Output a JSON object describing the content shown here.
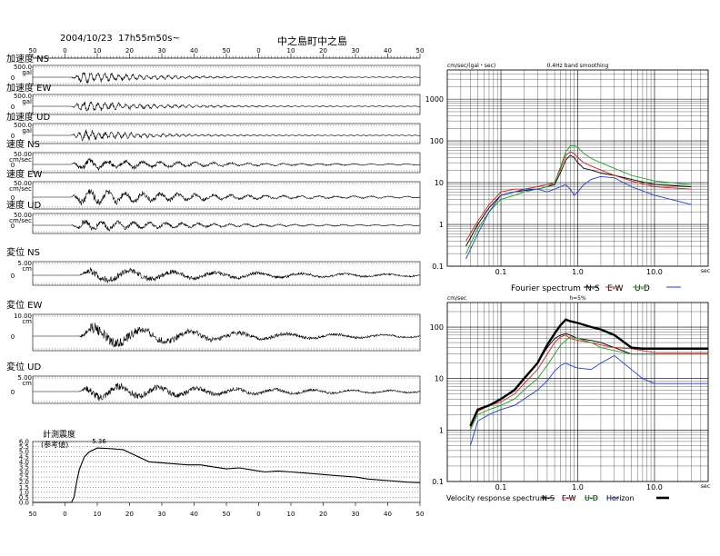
{
  "header": {
    "datetime": "2004/10/23  17h55m50s~",
    "station": "中之島町中之島"
  },
  "chart_data": [
    {
      "type": "line",
      "id": "waveforms",
      "x": [
        50,
        0,
        10,
        20,
        30,
        40,
        50,
        0,
        10,
        20,
        30,
        40,
        50
      ],
      "xticks": [
        "50",
        "0",
        "10",
        "20",
        "30",
        "40",
        "50",
        "0",
        "10",
        "20",
        "30",
        "40",
        "50"
      ],
      "panels": [
        {
          "label": "加速度 NS",
          "scale_top": "500.0",
          "scale_unit": "gal",
          "zero": "0",
          "amp": 0.9,
          "onset": 0.1,
          "decay": 0.18,
          "freq": 55,
          "peak_label": ""
        },
        {
          "label": "加速度 EW",
          "scale_top": "500.0",
          "scale_unit": "gal",
          "zero": "0",
          "amp": 0.9,
          "onset": 0.1,
          "decay": 0.18,
          "freq": 55,
          "peak_label": ""
        },
        {
          "label": "加速度 UD",
          "scale_top": "500.0",
          "scale_unit": "gal",
          "zero": "0",
          "amp": 0.9,
          "onset": 0.1,
          "decay": 0.16,
          "freq": 60,
          "peak_label": ""
        },
        {
          "label": "速度 NS",
          "scale_top": "50.00",
          "scale_unit": "cm/sec",
          "zero": "0",
          "amp": 0.9,
          "onset": 0.1,
          "decay": 0.3,
          "freq": 22,
          "peak_label": ""
        },
        {
          "label": "速度 EW",
          "scale_top": "50.00",
          "scale_unit": "cm/sec",
          "zero": "0",
          "amp": 0.9,
          "onset": 0.1,
          "decay": 0.3,
          "freq": 22,
          "peak_label": ""
        },
        {
          "label": "速度 UD",
          "scale_top": "50.00",
          "scale_unit": "cm/sec",
          "zero": "0",
          "amp": 0.9,
          "onset": 0.1,
          "decay": 0.28,
          "freq": 24,
          "peak_label": ""
        },
        {
          "label": "変位 NS",
          "scale_top": "5.00",
          "scale_unit": "cm",
          "zero": "0",
          "amp": 0.9,
          "onset": 0.12,
          "decay": 0.45,
          "freq": 9,
          "peak_label": ""
        },
        {
          "label": "変位 EW",
          "scale_top": "10.00",
          "scale_unit": "cm",
          "zero": "0",
          "amp": 0.9,
          "onset": 0.12,
          "decay": 0.35,
          "freq": 8,
          "peak_label": ""
        },
        {
          "label": "変位 UD",
          "scale_top": "5.00",
          "scale_unit": "cm",
          "zero": "0",
          "amp": 0.9,
          "onset": 0.12,
          "decay": 0.4,
          "freq": 10,
          "peak_label": ""
        }
      ]
    },
    {
      "type": "line",
      "id": "seismic-intensity",
      "title": "計測震度",
      "subtitle": "(参考値)",
      "peak_label": "5.36",
      "ylim": [
        0,
        6
      ],
      "yticks": [
        "0.0",
        "0.5",
        "1.0",
        "1.5",
        "2.0",
        "2.5",
        "3.0",
        "3.5",
        "4.0",
        "4.5",
        "5.0",
        "5.5",
        "6.0"
      ],
      "xticks": [
        "50",
        "0",
        "10",
        "20",
        "30",
        "40",
        "50",
        "0",
        "10",
        "20",
        "30",
        "40",
        "50"
      ],
      "x": [
        50,
        55,
        60,
        65,
        66,
        67,
        68,
        70,
        72,
        75,
        80,
        85,
        90,
        95,
        100,
        105,
        110,
        115,
        120,
        125,
        130,
        135,
        140,
        145,
        150,
        155,
        160,
        165,
        170,
        175,
        180,
        185,
        190,
        195,
        200
      ],
      "values": [
        0.0,
        0.0,
        0.0,
        0.0,
        0.5,
        2.0,
        3.2,
        4.5,
        5.0,
        5.36,
        5.3,
        5.2,
        4.6,
        4.0,
        3.9,
        3.8,
        3.7,
        3.7,
        3.5,
        3.3,
        3.4,
        3.2,
        3.0,
        3.1,
        3.0,
        2.9,
        2.8,
        2.7,
        2.6,
        2.5,
        2.3,
        2.2,
        2.1,
        2.0,
        1.95
      ]
    },
    {
      "type": "line",
      "id": "fourier-spectrum",
      "ylabel": "cm/sec/(gal・sec)",
      "note": "0.4Hz band smoothing",
      "xscale": "log",
      "yscale": "log",
      "xlim": [
        0.02,
        50
      ],
      "ylim": [
        0.1,
        5000
      ],
      "xtick_labels": [
        {
          "v": 0.1,
          "t": "0.1"
        },
        {
          "v": 1,
          "t": "1.0"
        },
        {
          "v": 10,
          "t": "10.0"
        }
      ],
      "xunit": "sec",
      "ytick_labels": [
        {
          "v": 0.1,
          "t": "0.1"
        },
        {
          "v": 1,
          "t": "1"
        },
        {
          "v": 10,
          "t": "10"
        },
        {
          "v": 100,
          "t": "100"
        },
        {
          "v": 1000,
          "t": "1000"
        }
      ],
      "legend": {
        "title": "Fourier spectrum",
        "items": [
          "N-S",
          "E-W",
          "U-D",
          ""
        ]
      },
      "series": [
        {
          "name": "N-S",
          "color": "#000000",
          "x": [
            0.035,
            0.05,
            0.07,
            0.1,
            0.15,
            0.2,
            0.3,
            0.4,
            0.5,
            0.6,
            0.7,
            0.8,
            0.9,
            1.0,
            1.2,
            1.5,
            2,
            3,
            5,
            10,
            30
          ],
          "values": [
            0.3,
            1.0,
            2.5,
            5,
            6,
            6.5,
            7,
            8,
            9,
            18,
            35,
            45,
            40,
            30,
            22,
            20,
            17,
            15,
            12,
            9,
            8
          ]
        },
        {
          "name": "E-W",
          "color": "#d02020",
          "x": [
            0.035,
            0.05,
            0.07,
            0.1,
            0.15,
            0.2,
            0.3,
            0.4,
            0.5,
            0.6,
            0.7,
            0.8,
            0.9,
            1.0,
            1.2,
            1.5,
            2,
            3,
            5,
            10,
            30
          ],
          "values": [
            0.4,
            1.2,
            3,
            6,
            7,
            7,
            8,
            9,
            10,
            22,
            45,
            55,
            50,
            40,
            30,
            25,
            20,
            15,
            11,
            8,
            7
          ]
        },
        {
          "name": "U-D",
          "color": "#20a020",
          "x": [
            0.035,
            0.05,
            0.07,
            0.1,
            0.15,
            0.2,
            0.3,
            0.4,
            0.5,
            0.6,
            0.7,
            0.8,
            0.9,
            1.0,
            1.2,
            1.5,
            2,
            3,
            5,
            10,
            30
          ],
          "values": [
            0.2,
            0.8,
            2,
            4,
            5,
            6,
            7,
            8,
            10,
            25,
            55,
            75,
            78,
            70,
            50,
            38,
            30,
            22,
            15,
            11,
            9
          ]
        },
        {
          "name": "",
          "color": "#2040d0",
          "x": [
            0.035,
            0.05,
            0.07,
            0.1,
            0.15,
            0.2,
            0.3,
            0.4,
            0.5,
            0.6,
            0.7,
            0.8,
            0.9,
            1.0,
            1.2,
            1.5,
            2,
            3,
            5,
            10,
            30
          ],
          "values": [
            0.15,
            0.6,
            2,
            5,
            6,
            7,
            7,
            6,
            7,
            8,
            9,
            7,
            5,
            6,
            9,
            12,
            14,
            13,
            8,
            5,
            3
          ]
        }
      ]
    },
    {
      "type": "line",
      "id": "velocity-response-spectrum",
      "ylabel": "cm/sec",
      "note": "h=5%",
      "xscale": "log",
      "yscale": "log",
      "xlim": [
        0.02,
        50
      ],
      "ylim": [
        0.1,
        300
      ],
      "xtick_labels": [
        {
          "v": 0.1,
          "t": "0.1"
        },
        {
          "v": 1,
          "t": "1.0"
        },
        {
          "v": 10,
          "t": "10.0"
        }
      ],
      "xunit": "sec",
      "ytick_labels": [
        {
          "v": 0.1,
          "t": "0.1"
        },
        {
          "v": 1,
          "t": "1"
        },
        {
          "v": 10,
          "t": "10"
        },
        {
          "v": 100,
          "t": "100"
        }
      ],
      "legend": {
        "title": "Velocity response spectrum",
        "items": [
          "N-S",
          "E-W",
          "U-D",
          "Horizon",
          ""
        ]
      },
      "series": [
        {
          "name": "N-S",
          "color": "#000000",
          "x": [
            0.04,
            0.05,
            0.07,
            0.1,
            0.15,
            0.2,
            0.3,
            0.4,
            0.5,
            0.6,
            0.7,
            0.8,
            1.0,
            1.5,
            2,
            3,
            5,
            7,
            10,
            20,
            50
          ],
          "values": [
            1.2,
            2.5,
            3,
            4,
            6,
            10,
            20,
            40,
            60,
            70,
            75,
            70,
            60,
            55,
            50,
            40,
            30,
            30,
            30,
            30,
            30
          ]
        },
        {
          "name": "E-W",
          "color": "#d02020",
          "x": [
            0.04,
            0.05,
            0.07,
            0.1,
            0.15,
            0.2,
            0.3,
            0.4,
            0.5,
            0.6,
            0.7,
            0.8,
            1.0,
            1.5,
            2,
            3,
            5,
            7,
            10,
            20,
            50
          ],
          "values": [
            1.1,
            2.3,
            3,
            3.5,
            5,
            8,
            15,
            30,
            50,
            65,
            70,
            60,
            55,
            50,
            45,
            40,
            38,
            35,
            32,
            32,
            32
          ]
        },
        {
          "name": "U-D",
          "color": "#20a020",
          "x": [
            0.04,
            0.05,
            0.07,
            0.1,
            0.15,
            0.2,
            0.3,
            0.4,
            0.5,
            0.6,
            0.7,
            0.8,
            1.0,
            1.5,
            2,
            3,
            5,
            7,
            10,
            20,
            50
          ],
          "values": [
            1.0,
            2,
            2.5,
            3,
            4,
            6,
            10,
            18,
            30,
            45,
            55,
            65,
            60,
            50,
            40,
            35,
            30,
            30,
            30,
            30,
            30
          ]
        },
        {
          "name": "Horizon",
          "color": "#2040d0",
          "x": [
            0.04,
            0.05,
            0.07,
            0.1,
            0.15,
            0.2,
            0.3,
            0.4,
            0.5,
            0.6,
            0.7,
            0.8,
            1.0,
            1.5,
            2,
            3,
            5,
            7,
            10,
            20,
            50
          ],
          "values": [
            0.5,
            1.5,
            2,
            2.5,
            3,
            4,
            6,
            9,
            14,
            18,
            20,
            18,
            16,
            15,
            20,
            28,
            15,
            10,
            8,
            8,
            8
          ]
        },
        {
          "name": "",
          "color": "#000000",
          "width": 2.4,
          "x": [
            0.04,
            0.05,
            0.07,
            0.1,
            0.15,
            0.2,
            0.3,
            0.4,
            0.5,
            0.6,
            0.7,
            0.8,
            1.0,
            1.5,
            2,
            3,
            5,
            7,
            10,
            20,
            50
          ],
          "values": [
            1.2,
            2.5,
            3,
            4,
            6,
            10,
            20,
            45,
            75,
            110,
            140,
            130,
            120,
            100,
            90,
            70,
            40,
            38,
            38,
            38,
            38
          ]
        }
      ]
    }
  ]
}
